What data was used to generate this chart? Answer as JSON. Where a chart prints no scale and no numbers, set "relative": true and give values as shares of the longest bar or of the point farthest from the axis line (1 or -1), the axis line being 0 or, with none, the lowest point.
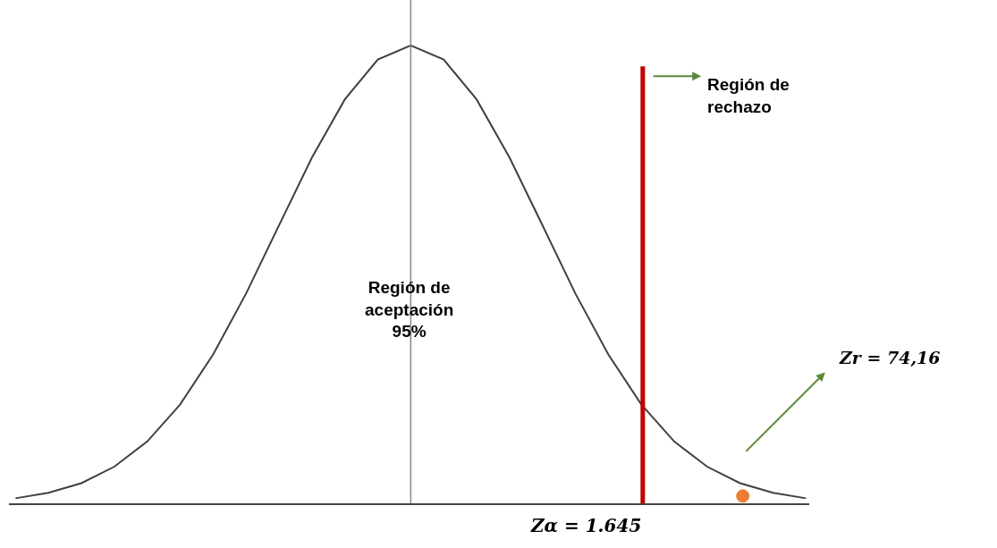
{
  "chart_data": {
    "type": "line",
    "relative": true,
    "marker": "none",
    "line_style": "solid",
    "categories": [
      null,
      null,
      null,
      null,
      null,
      null,
      null,
      null,
      null,
      null,
      null,
      null,
      null,
      null,
      null,
      null,
      null,
      null,
      null,
      null,
      null,
      null,
      null,
      null,
      null
    ],
    "series": [
      {
        "color": "#404040",
        "values": [
          0.011,
          0.023,
          0.044,
          0.08,
          0.135,
          0.216,
          0.325,
          0.458,
          0.607,
          0.755,
          0.882,
          0.969,
          1,
          0.969,
          0.882,
          0.755,
          0.607,
          0.458,
          0.325,
          0.216,
          0.135,
          0.08,
          0.044,
          0.023,
          0.011
        ]
      }
    ],
    "ref_lines": [
      {
        "axis": "x",
        "label": "Zα = 1.645",
        "color": "#c00000",
        "line_style": "solid"
      }
    ],
    "annotations": [
      "Región de\naceptación\n95%",
      "Región de\nrechazo",
      "Zr = 74,16"
    ]
  }
}
